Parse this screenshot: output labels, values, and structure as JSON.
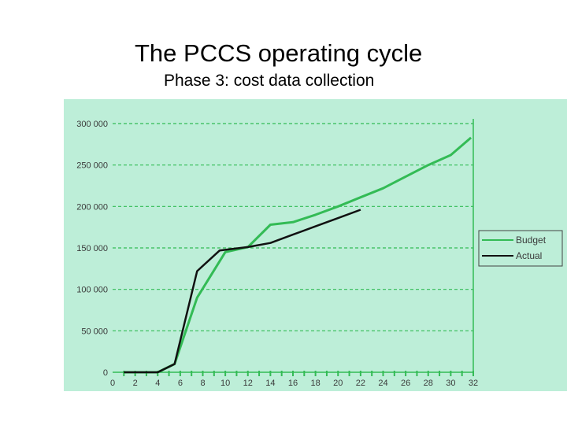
{
  "slide": {
    "title": "The PCCS operating cycle",
    "subtitle": "Phase 3: cost data collection"
  },
  "colors": {
    "panel_bg": "#bdeed8",
    "budget": "#33bb55",
    "actual": "#111111",
    "grid": "#33bb55",
    "axis": "#33bb55"
  },
  "chart_data": {
    "type": "line",
    "title": "",
    "xlabel": "",
    "ylabel": "",
    "xlim": [
      0,
      32
    ],
    "ylim": [
      0,
      300000
    ],
    "x_ticks": [
      "0",
      "2",
      "4",
      "6",
      "8",
      "10",
      "12",
      "14",
      "16",
      "18",
      "20",
      "22",
      "24",
      "26",
      "28",
      "30",
      "32"
    ],
    "y_ticks": [
      "0",
      "50 000",
      "100 000",
      "150 000",
      "200 000",
      "250 000",
      "300 000"
    ],
    "grid": "horizontal dashed",
    "legend_position": "right",
    "series": [
      {
        "name": "Budget",
        "color": "#33bb55",
        "points": [
          [
            1,
            0
          ],
          [
            3,
            0
          ],
          [
            4,
            0
          ],
          [
            5.5,
            10000
          ],
          [
            7.5,
            90000
          ],
          [
            10,
            145000
          ],
          [
            12,
            151000
          ],
          [
            14,
            178000
          ],
          [
            16,
            181000
          ],
          [
            18,
            190000
          ],
          [
            20,
            200000
          ],
          [
            22,
            211000
          ],
          [
            24,
            222000
          ],
          [
            26,
            236000
          ],
          [
            28,
            250000
          ],
          [
            30,
            262000
          ],
          [
            31.8,
            283000
          ]
        ]
      },
      {
        "name": "Actual",
        "color": "#111111",
        "points": [
          [
            1,
            0
          ],
          [
            2,
            0
          ],
          [
            4,
            0
          ],
          [
            5.5,
            10000
          ],
          [
            7.5,
            122000
          ],
          [
            9.5,
            147000
          ],
          [
            12,
            151000
          ],
          [
            14,
            156000
          ],
          [
            16,
            166000
          ],
          [
            18,
            176000
          ],
          [
            20,
            186000
          ],
          [
            22,
            196000
          ]
        ]
      }
    ]
  }
}
